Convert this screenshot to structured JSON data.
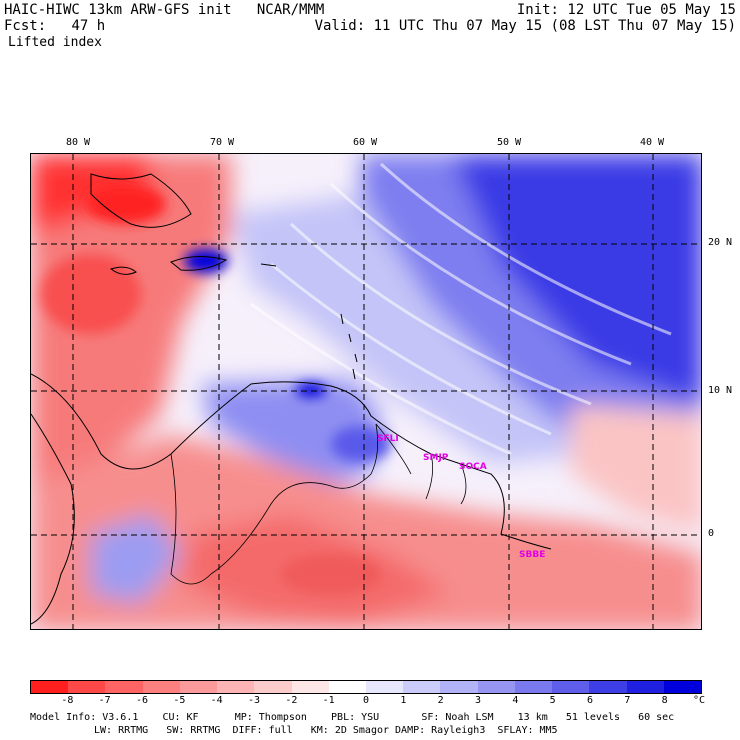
{
  "header": {
    "model": "HAIC-HIWC 13km ARW-GFS init",
    "org": "NCAR/MMM",
    "init": "Init: 12 UTC Tue 05 May 15",
    "fcst_label": "Fcst:",
    "fcst_value": "47 h",
    "valid": "Valid: 11 UTC Thu 07 May 15 (08 LST Thu 07 May 15)",
    "field": "Lifted index"
  },
  "map": {
    "longitudes": [
      "80 W",
      "70 W",
      "60 W",
      "50 W",
      "40 W"
    ],
    "latitudes": [
      "20 N",
      "10 N",
      "0"
    ],
    "stations": [
      {
        "id": "SFLI",
        "label": "SFLI"
      },
      {
        "id": "SMJP",
        "label": "SMJP"
      },
      {
        "id": "SOCA",
        "label": "SOCA"
      },
      {
        "id": "SBBE",
        "label": "SBBE"
      }
    ],
    "station_color": "#e400e4"
  },
  "legend": {
    "colors": [
      "#ff1f1f",
      "#ff4848",
      "#ff6464",
      "#fc8080",
      "#fb9a9a",
      "#fcb4b4",
      "#fccccc",
      "#fde6e6",
      "#ffffff",
      "#e6e6fd",
      "#ccccfa",
      "#b2b2f6",
      "#9696f2",
      "#7a7aee",
      "#5e5eea",
      "#3e3ee6",
      "#2020e0",
      "#0000dc"
    ],
    "ticks": [
      "-8",
      "-7",
      "-6",
      "-5",
      "-4",
      "-3",
      "-2",
      "-1",
      "0",
      "1",
      "2",
      "3",
      "4",
      "5",
      "6",
      "7",
      "8"
    ],
    "unit": "°C"
  },
  "model_info": {
    "line1": "Model Info: V3.6.1    CU: KF      MP: Thompson    PBL: YSU       SF: Noah LSM    13 km   51 levels   60 sec",
    "line2": "LW: RRTMG   SW: RRTMG  DIFF: full   KM: 2D Smagor DAMP: Rayleigh3  SFLAY: MM5"
  }
}
